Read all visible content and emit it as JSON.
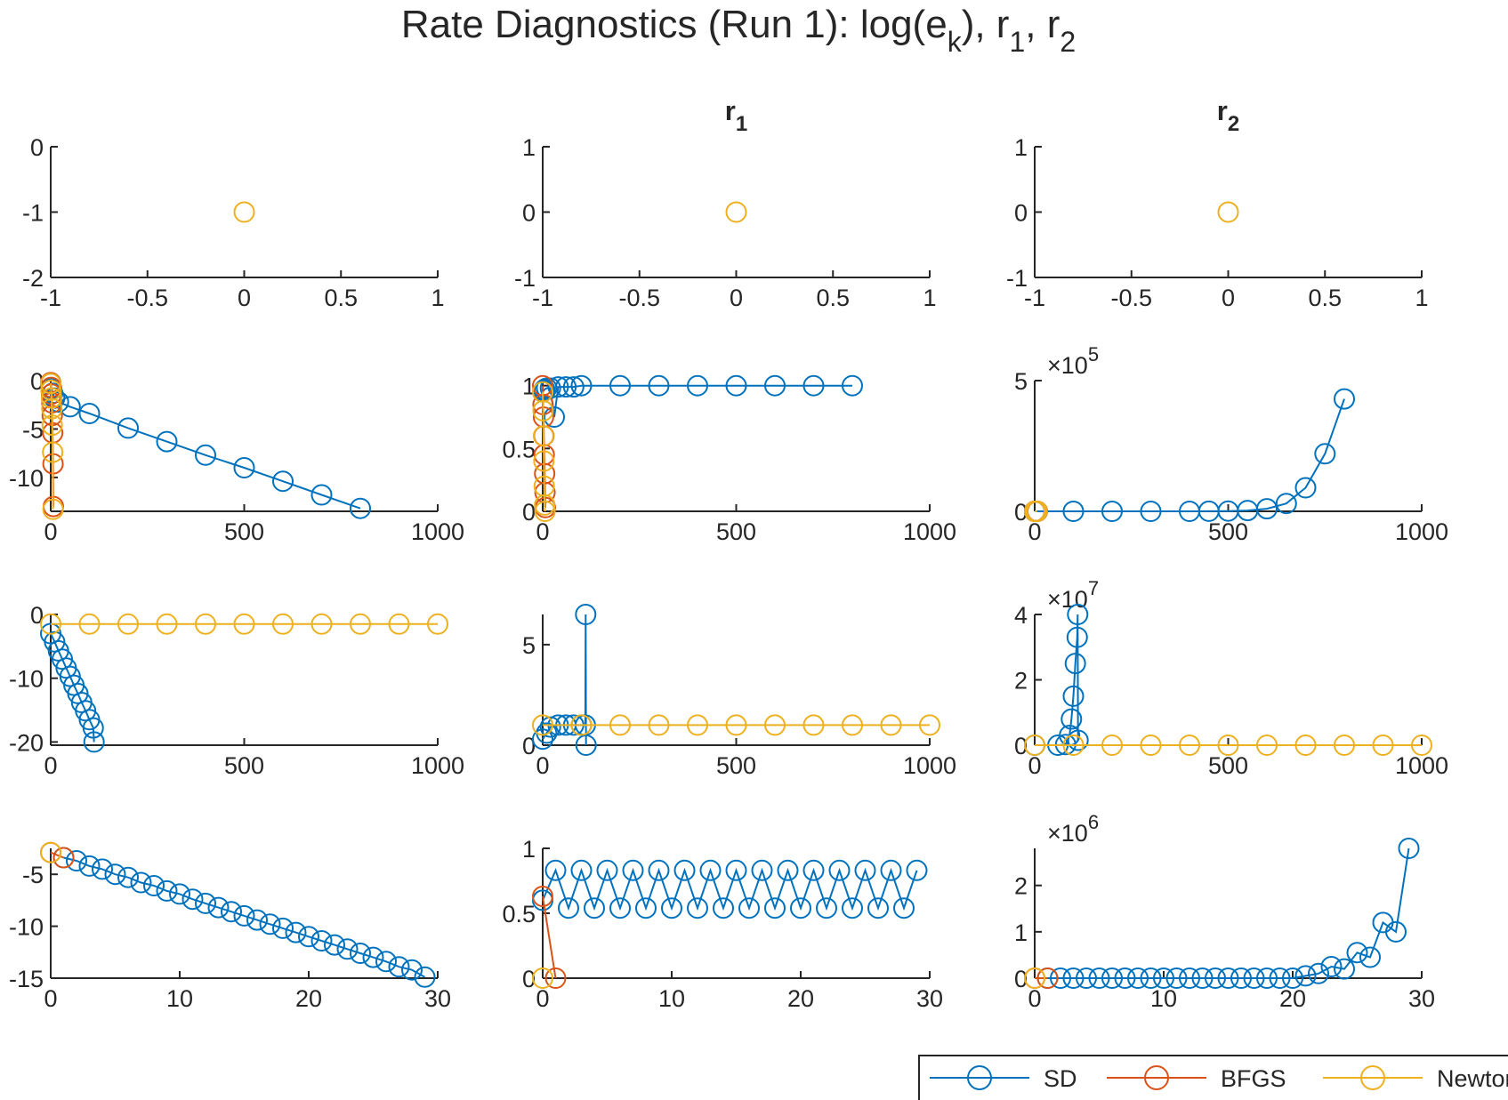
{
  "figure": {
    "title": {
      "main": "Rate Diagnostics (Run 1): log(e",
      "sub": "k",
      "mid1": "), r",
      "sub1": "1",
      "mid2": ", r",
      "sub2": "2"
    }
  },
  "legend": {
    "items": [
      {
        "label": "SD",
        "color": "#0072BD"
      },
      {
        "label": "BFGS",
        "color": "#D95319"
      },
      {
        "label": "Newton",
        "color": "#EDB120"
      }
    ]
  },
  "colors": {
    "SD": "#0072BD",
    "BFGS": "#D95319",
    "Newton": "#EDB120",
    "axis": "#262626"
  },
  "chart_data": [
    {
      "type": "scatter",
      "title": "",
      "xlim": [
        -1,
        1
      ],
      "ylim": [
        -2,
        0
      ],
      "xticks": [
        "-1",
        "-0.5",
        "0",
        "0.5",
        "1"
      ],
      "yticks": [
        "0",
        "-1",
        "-2"
      ],
      "series": [
        {
          "id": "Newton",
          "x": [
            0
          ],
          "y": [
            -1
          ]
        }
      ]
    },
    {
      "type": "scatter",
      "title": "r",
      "title_sub": "1",
      "xlim": [
        -1,
        1
      ],
      "ylim": [
        -1,
        1
      ],
      "xticks": [
        "-1",
        "-0.5",
        "0",
        "0.5",
        "1"
      ],
      "yticks": [
        "1",
        "0",
        "-1"
      ],
      "series": [
        {
          "id": "Newton",
          "x": [
            0
          ],
          "y": [
            0
          ]
        }
      ]
    },
    {
      "type": "scatter",
      "title": "r",
      "title_sub": "2",
      "xlim": [
        -1,
        1
      ],
      "ylim": [
        -1,
        1
      ],
      "xticks": [
        "-1",
        "-0.5",
        "0",
        "0.5",
        "1"
      ],
      "yticks": [
        "1",
        "0",
        "-1"
      ],
      "series": [
        {
          "id": "Newton",
          "x": [
            0
          ],
          "y": [
            0
          ]
        }
      ]
    },
    {
      "type": "line",
      "title": "",
      "xlim": [
        0,
        1000
      ],
      "ylim": [
        -13.5,
        0
      ],
      "xticks": [
        "0",
        "500",
        "1000"
      ],
      "yticks": [
        "0",
        "-5",
        "-10"
      ],
      "series": [
        {
          "id": "SD",
          "x": [
            0,
            2,
            5,
            10,
            20,
            50,
            100,
            200,
            300,
            400,
            500,
            600,
            700,
            800
          ],
          "y": [
            -0.3,
            -0.8,
            -1.3,
            -1.8,
            -2.2,
            -2.7,
            -3.4,
            -4.9,
            -6.3,
            -7.7,
            -9.0,
            -10.4,
            -11.8,
            -13.2
          ]
        },
        {
          "id": "BFGS",
          "x": [
            0,
            1,
            2,
            3,
            4,
            5,
            6,
            7
          ],
          "y": [
            -0.2,
            -0.7,
            -1.4,
            -2.3,
            -3.6,
            -5.4,
            -8.6,
            -13.0
          ]
        },
        {
          "id": "Newton",
          "x": [
            0,
            1,
            2,
            3,
            4,
            5,
            6
          ],
          "y": [
            -0.3,
            -1.0,
            -1.8,
            -2.9,
            -4.6,
            -7.4,
            -13.3
          ]
        }
      ]
    },
    {
      "type": "line",
      "title": "",
      "xlim": [
        0,
        1000
      ],
      "ylim": [
        0,
        1.04
      ],
      "xticks": [
        "0",
        "500",
        "1000"
      ],
      "yticks": [
        "1",
        "0.5",
        "0"
      ],
      "series": [
        {
          "id": "SD",
          "x": [
            0,
            2,
            5,
            10,
            20,
            30,
            40,
            60,
            80,
            100,
            200,
            300,
            400,
            500,
            600,
            700,
            800
          ],
          "y": [
            0.95,
            0.96,
            0.97,
            0.98,
            0.98,
            0.75,
            0.99,
            0.99,
            0.99,
            1.0,
            1.0,
            1.0,
            1.0,
            1.0,
            1.0,
            1.0,
            1.0
          ]
        },
        {
          "id": "BFGS",
          "x": [
            0,
            1,
            2,
            3,
            4,
            5,
            6,
            7
          ],
          "y": [
            1.0,
            0.85,
            0.75,
            0.6,
            0.45,
            0.3,
            0.15,
            0.03
          ]
        },
        {
          "id": "Newton",
          "x": [
            0,
            1,
            2,
            3,
            4,
            5,
            6
          ],
          "y": [
            0.95,
            0.8,
            0.6,
            0.4,
            0.2,
            0.05,
            0.0
          ]
        }
      ]
    },
    {
      "type": "line",
      "title": "",
      "xlim": [
        0,
        1000
      ],
      "ylim": [
        0,
        500000
      ],
      "y_exponent": "5",
      "xticks": [
        "0",
        "500",
        "1000"
      ],
      "yticks": [
        "5",
        "0"
      ],
      "series": [
        {
          "id": "SD",
          "x": [
            0,
            100,
            200,
            300,
            400,
            450,
            500,
            550,
            600,
            650,
            700,
            750,
            800
          ],
          "y": [
            0,
            0,
            0,
            0,
            0,
            200,
            1000,
            3000,
            10000,
            30000,
            90000,
            220000,
            430000
          ]
        },
        {
          "id": "BFGS",
          "x": [
            0,
            1,
            2,
            3,
            4,
            5,
            6,
            7
          ],
          "y": [
            0,
            0,
            0,
            0,
            0,
            0,
            0,
            0
          ]
        },
        {
          "id": "Newton",
          "x": [
            0,
            1,
            2,
            3,
            4,
            5,
            6
          ],
          "y": [
            0,
            0,
            0,
            0,
            0,
            0,
            0
          ]
        }
      ]
    },
    {
      "type": "line",
      "title": "",
      "xlim": [
        0,
        1000
      ],
      "ylim": [
        -20.5,
        0
      ],
      "xticks": [
        "0",
        "500",
        "1000"
      ],
      "yticks": [
        "0",
        "-10",
        "-20"
      ],
      "series": [
        {
          "id": "SD",
          "x": [
            0,
            10,
            20,
            30,
            40,
            50,
            60,
            70,
            80,
            90,
            100,
            110,
            112
          ],
          "y": [
            -3.0,
            -4.3,
            -5.7,
            -7.0,
            -8.4,
            -9.7,
            -11.1,
            -12.4,
            -13.8,
            -15.1,
            -16.5,
            -17.8,
            -20.0
          ]
        },
        {
          "id": "Newton",
          "x": [
            0,
            100,
            200,
            300,
            400,
            500,
            600,
            700,
            800,
            900,
            1000
          ],
          "y": [
            -1.5,
            -1.5,
            -1.5,
            -1.5,
            -1.5,
            -1.5,
            -1.5,
            -1.5,
            -1.5,
            -1.5,
            -1.5
          ]
        }
      ]
    },
    {
      "type": "line",
      "title": "",
      "xlim": [
        0,
        1000
      ],
      "ylim": [
        0,
        6.5
      ],
      "xticks": [
        "0",
        "500",
        "1000"
      ],
      "yticks": [
        "5",
        "0"
      ],
      "series": [
        {
          "id": "SD",
          "x": [
            0,
            10,
            20,
            40,
            60,
            80,
            100,
            110,
            111,
            112
          ],
          "y": [
            0.3,
            0.6,
            0.9,
            1.0,
            1.0,
            1.0,
            1.0,
            1.0,
            6.5,
            0.0
          ]
        },
        {
          "id": "Newton",
          "x": [
            0,
            100,
            200,
            300,
            400,
            500,
            600,
            700,
            800,
            900,
            1000
          ],
          "y": [
            1.0,
            1.0,
            1.0,
            1.0,
            1.0,
            1.0,
            1.0,
            1.0,
            1.0,
            1.0,
            1.0
          ]
        }
      ]
    },
    {
      "type": "line",
      "title": "",
      "xlim": [
        0,
        1000
      ],
      "ylim": [
        0,
        40000000
      ],
      "y_exponent": "7",
      "xticks": [
        "0",
        "500",
        "1000"
      ],
      "yticks": [
        "4",
        "2",
        "0"
      ],
      "series": [
        {
          "id": "SD",
          "x": [
            0,
            60,
            80,
            90,
            95,
            100,
            105,
            110,
            111,
            112
          ],
          "y": [
            0,
            0,
            200000,
            3000000,
            8000000,
            15000000,
            25000000,
            33000000,
            40000000,
            1500000
          ]
        },
        {
          "id": "Newton",
          "x": [
            0,
            100,
            200,
            300,
            400,
            500,
            600,
            700,
            800,
            900,
            1000
          ],
          "y": [
            0,
            0,
            0,
            0,
            0,
            0,
            0,
            0,
            0,
            0,
            0
          ]
        }
      ]
    },
    {
      "type": "line",
      "title": "",
      "xlim": [
        0,
        30
      ],
      "ylim": [
        -15,
        -2.5
      ],
      "xticks": [
        "0",
        "10",
        "20",
        "30"
      ],
      "yticks": [
        "-5",
        "-10",
        "-15"
      ],
      "series": [
        {
          "id": "SD",
          "x": [
            1,
            2,
            3,
            4,
            5,
            6,
            7,
            8,
            9,
            10,
            11,
            12,
            13,
            14,
            15,
            16,
            17,
            18,
            19,
            20,
            21,
            22,
            23,
            24,
            25,
            26,
            27,
            28,
            29
          ],
          "y": [
            -3.4,
            -3.7,
            -4.2,
            -4.5,
            -5.0,
            -5.3,
            -5.8,
            -6.1,
            -6.6,
            -6.9,
            -7.4,
            -7.8,
            -8.2,
            -8.6,
            -9.0,
            -9.4,
            -9.8,
            -10.2,
            -10.6,
            -11.0,
            -11.4,
            -11.8,
            -12.2,
            -12.6,
            -13.0,
            -13.4,
            -13.9,
            -14.2,
            -14.9
          ]
        },
        {
          "id": "BFGS",
          "x": [
            0,
            1
          ],
          "y": [
            -2.9,
            -3.4
          ]
        },
        {
          "id": "Newton",
          "x": [
            0
          ],
          "y": [
            -2.9
          ]
        }
      ]
    },
    {
      "type": "line",
      "title": "",
      "xlim": [
        0,
        30
      ],
      "ylim": [
        0,
        1
      ],
      "xticks": [
        "0",
        "10",
        "20",
        "30"
      ],
      "yticks": [
        "1",
        "0.5",
        "0"
      ],
      "series": [
        {
          "id": "SD",
          "x": [
            0,
            1,
            2,
            3,
            4,
            5,
            6,
            7,
            8,
            9,
            10,
            11,
            12,
            13,
            14,
            15,
            16,
            17,
            18,
            19,
            20,
            21,
            22,
            23,
            24,
            25,
            26,
            27,
            28,
            29
          ],
          "y": [
            0.6,
            0.83,
            0.54,
            0.83,
            0.54,
            0.83,
            0.54,
            0.83,
            0.54,
            0.83,
            0.54,
            0.83,
            0.54,
            0.83,
            0.54,
            0.83,
            0.54,
            0.83,
            0.54,
            0.83,
            0.54,
            0.83,
            0.54,
            0.83,
            0.54,
            0.83,
            0.54,
            0.83,
            0.54,
            0.83
          ]
        },
        {
          "id": "BFGS",
          "x": [
            0,
            1
          ],
          "y": [
            0.63,
            0.0
          ]
        },
        {
          "id": "Newton",
          "x": [
            0
          ],
          "y": [
            0.0
          ]
        }
      ]
    },
    {
      "type": "line",
      "title": "",
      "xlim": [
        0,
        30
      ],
      "ylim": [
        0,
        2800000
      ],
      "y_exponent": "6",
      "xticks": [
        "0",
        "10",
        "20",
        "30"
      ],
      "yticks": [
        "2",
        "1",
        "0"
      ],
      "series": [
        {
          "id": "SD",
          "x": [
            1,
            2,
            3,
            4,
            5,
            6,
            7,
            8,
            9,
            10,
            11,
            12,
            13,
            14,
            15,
            16,
            17,
            18,
            19,
            20,
            21,
            22,
            23,
            24,
            25,
            26,
            27,
            28,
            29
          ],
          "y": [
            0,
            0,
            0,
            0,
            0,
            0,
            0,
            0,
            0,
            0,
            0,
            0,
            0,
            0,
            0,
            0,
            0,
            0,
            0,
            0,
            50000,
            100000,
            250000,
            200000,
            550000,
            450000,
            1200000,
            1000000,
            2800000
          ]
        },
        {
          "id": "BFGS",
          "x": [
            0,
            1
          ],
          "y": [
            0,
            0
          ]
        },
        {
          "id": "Newton",
          "x": [
            0
          ],
          "y": [
            0
          ]
        }
      ]
    }
  ]
}
